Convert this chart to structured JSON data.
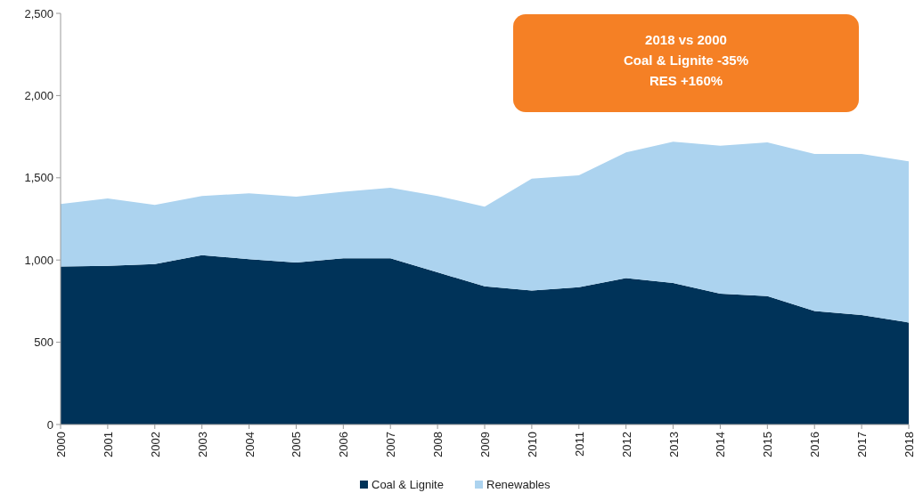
{
  "chart_data": {
    "type": "area",
    "stacked": true,
    "categories": [
      "2000",
      "2001",
      "2002",
      "2003",
      "2004",
      "2005",
      "2006",
      "2007",
      "2008",
      "2009",
      "2010",
      "2011",
      "2012",
      "2013",
      "2014",
      "2015",
      "2016",
      "2017",
      "2018"
    ],
    "series": [
      {
        "name": "Coal & Lignite",
        "color": "#003359",
        "values": [
          960,
          965,
          975,
          1030,
          1005,
          985,
          1010,
          1010,
          925,
          840,
          815,
          835,
          890,
          860,
          795,
          780,
          690,
          665,
          620
        ]
      },
      {
        "name": "Renewables",
        "color": "#acd3ef",
        "values": [
          380,
          410,
          360,
          360,
          400,
          400,
          405,
          430,
          465,
          485,
          680,
          680,
          765,
          860,
          900,
          935,
          955,
          980,
          980
        ]
      }
    ],
    "ylim": [
      0,
      2500
    ],
    "yticks": [
      0,
      500,
      {
        "value": 1000,
        "label": "1,000"
      },
      {
        "value": 1500,
        "label": "1,500"
      },
      {
        "value": 2000,
        "label": "2,000"
      },
      {
        "value": 2500,
        "label": "2,500"
      }
    ],
    "grid": false,
    "legend": "bottom",
    "annotations": [
      "2018 vs 2000",
      "Coal & Lignite -35%",
      "RES +160%"
    ]
  }
}
